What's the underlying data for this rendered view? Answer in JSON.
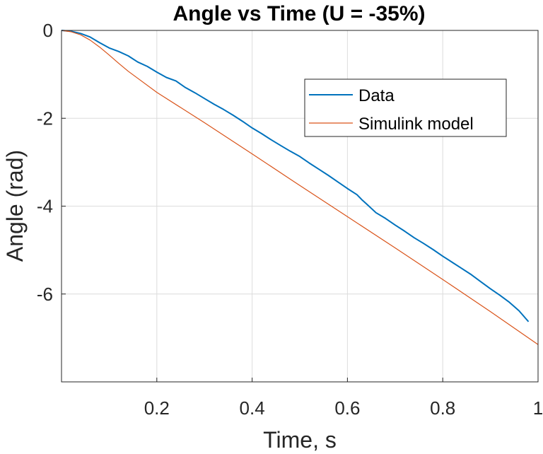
{
  "chart_data": {
    "type": "line",
    "title": "Angle vs Time (U = -35%)",
    "xlabel": "Time, s",
    "ylabel": "Angle (rad)",
    "xlim": [
      0,
      1
    ],
    "ylim": [
      -8,
      0
    ],
    "xticks": [
      0.2,
      0.4,
      0.6,
      0.8,
      1
    ],
    "xtick_labels": [
      "0.2",
      "0.4",
      "0.6",
      "0.8",
      "1"
    ],
    "yticks": [
      0,
      -2,
      -4,
      -6
    ],
    "ytick_labels": [
      "0",
      "-2",
      "-4",
      "-6"
    ],
    "grid": true,
    "legend": {
      "position": "top-right"
    },
    "series": [
      {
        "name": "Data",
        "color": "#0072BD",
        "x": [
          0,
          0.02,
          0.04,
          0.06,
          0.08,
          0.1,
          0.12,
          0.14,
          0.16,
          0.18,
          0.2,
          0.22,
          0.24,
          0.26,
          0.28,
          0.3,
          0.32,
          0.34,
          0.36,
          0.38,
          0.4,
          0.42,
          0.44,
          0.46,
          0.48,
          0.5,
          0.52,
          0.54,
          0.56,
          0.58,
          0.6,
          0.62,
          0.63,
          0.64,
          0.66,
          0.68,
          0.7,
          0.72,
          0.74,
          0.76,
          0.78,
          0.8,
          0.82,
          0.84,
          0.86,
          0.88,
          0.9,
          0.92,
          0.94,
          0.96,
          0.98
        ],
        "y": [
          0,
          -0.02,
          -0.07,
          -0.15,
          -0.28,
          -0.4,
          -0.48,
          -0.58,
          -0.72,
          -0.82,
          -0.95,
          -1.07,
          -1.15,
          -1.3,
          -1.42,
          -1.55,
          -1.68,
          -1.8,
          -1.93,
          -2.07,
          -2.22,
          -2.35,
          -2.49,
          -2.62,
          -2.75,
          -2.87,
          -3.02,
          -3.16,
          -3.3,
          -3.45,
          -3.6,
          -3.74,
          -3.85,
          -3.95,
          -4.15,
          -4.28,
          -4.43,
          -4.57,
          -4.72,
          -4.85,
          -4.99,
          -5.14,
          -5.28,
          -5.42,
          -5.56,
          -5.72,
          -5.88,
          -6.03,
          -6.19,
          -6.38,
          -6.63
        ]
      },
      {
        "name": "Simulink model",
        "color": "#D95319",
        "x": [
          0,
          0.02,
          0.04,
          0.06,
          0.08,
          0.1,
          0.12,
          0.14,
          0.16,
          0.2,
          0.3,
          0.4,
          0.5,
          0.6,
          0.7,
          0.8,
          0.9,
          1.0
        ],
        "y": [
          0,
          -0.03,
          -0.1,
          -0.22,
          -0.38,
          -0.56,
          -0.75,
          -0.93,
          -1.09,
          -1.41,
          -2.1,
          -2.81,
          -3.53,
          -4.24,
          -4.95,
          -5.67,
          -6.4,
          -7.15
        ]
      }
    ]
  }
}
